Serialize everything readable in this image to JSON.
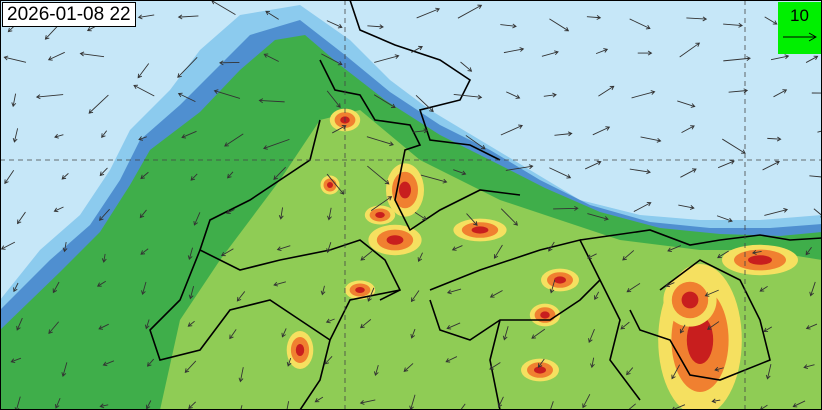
{
  "map": {
    "timestamp": "2026-01-08 22",
    "wind_legend": {
      "value": "10",
      "icon": "arrow-right-icon"
    },
    "colors": {
      "background": "#c6e7f8",
      "low": "#5aa0d8",
      "mid_low": "#3cb44b",
      "mid": "#8fcc55",
      "high": "#f5e060",
      "very_high": "#f08030",
      "extreme": "#c81e1e",
      "legend_box": "#00f000"
    }
  }
}
